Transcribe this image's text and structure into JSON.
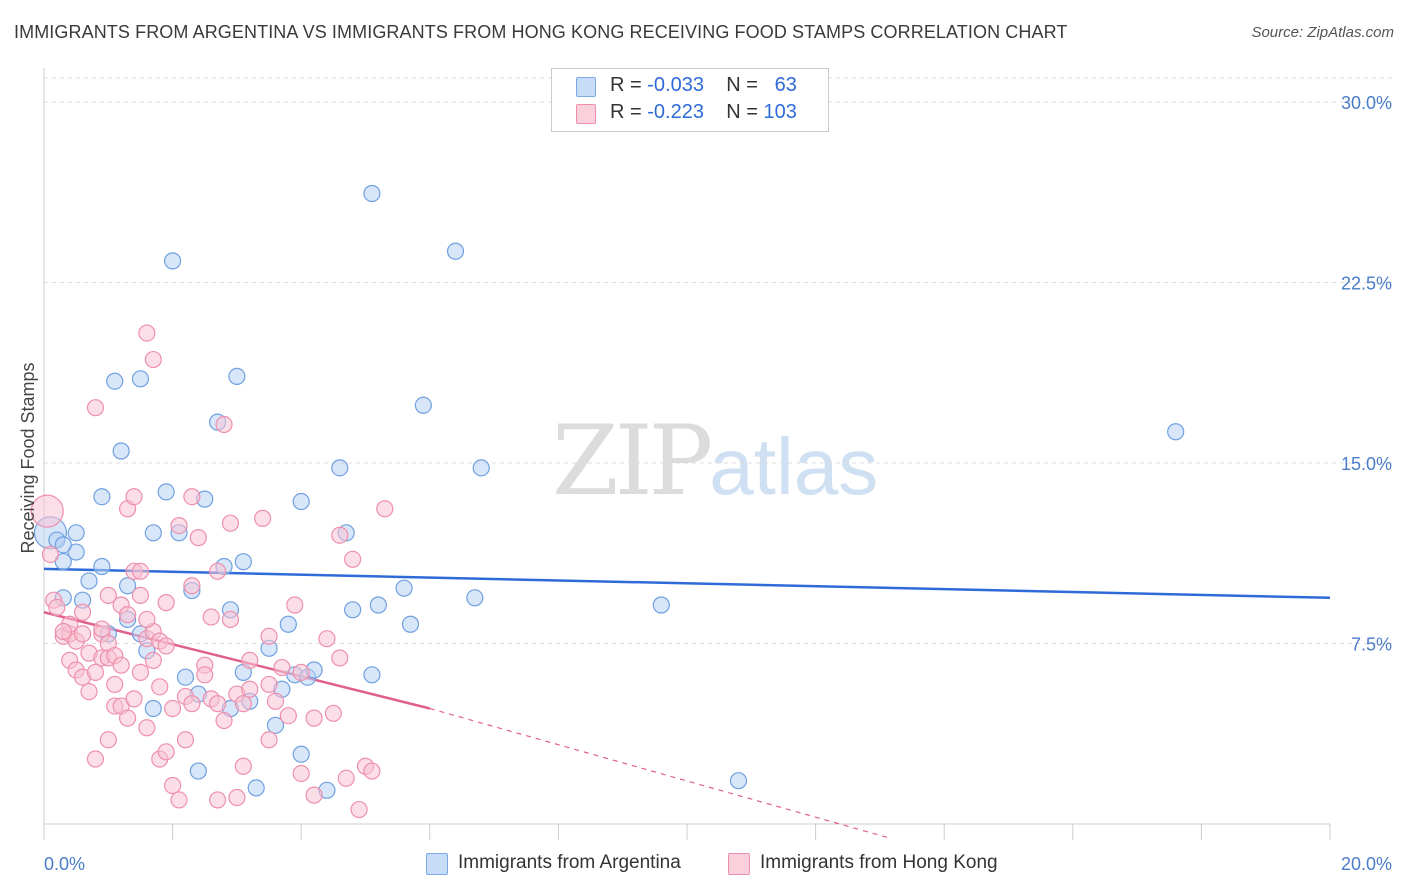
{
  "title": "IMMIGRANTS FROM ARGENTINA VS IMMIGRANTS FROM HONG KONG RECEIVING FOOD STAMPS CORRELATION CHART",
  "source": "Source: ZipAtlas.com",
  "watermark": {
    "zip": "ZIP",
    "atlas": "atlas"
  },
  "legend": {
    "rows": [
      {
        "r_label": "R = ",
        "r_value": "-0.033",
        "n_label": "N = ",
        "n_value": "63",
        "color": "#a9c8f2"
      },
      {
        "r_label": "R = ",
        "r_value": "-0.223",
        "n_label": "N = ",
        "n_value": "103",
        "color": "#f5b6c9"
      }
    ]
  },
  "bottom_legend": [
    {
      "label": "Immigrants from Argentina",
      "color": "#a9c8f2"
    },
    {
      "label": "Immigrants from Hong Kong",
      "color": "#f5b6c9"
    }
  ],
  "chart_data": {
    "type": "scatter",
    "title": "IMMIGRANTS FROM ARGENTINA VS IMMIGRANTS FROM HONG KONG RECEIVING FOOD STAMPS CORRELATION CHART",
    "xlabel": "",
    "ylabel": "Receiving Food Stamps",
    "xlim": [
      0,
      20
    ],
    "ylim": [
      0,
      31
    ],
    "x_tick_labels": [
      "0.0%",
      "20.0%"
    ],
    "y_ticks": [
      7.5,
      15.0,
      22.5,
      30.0
    ],
    "y_tick_labels": [
      "7.5%",
      "15.0%",
      "22.5%",
      "30.0%"
    ],
    "grid": true,
    "series": [
      {
        "name": "Immigrants from Argentina",
        "color": "#6fa0e0",
        "fill": "#b8d2f4",
        "trend": {
          "x": [
            0,
            20
          ],
          "y": [
            10.6,
            9.4
          ],
          "style": "solid",
          "color": "#2f6bd8"
        },
        "points": [
          [
            0.1,
            12.1
          ],
          [
            0.2,
            11.8
          ],
          [
            0.3,
            9.4
          ],
          [
            0.5,
            12.1
          ],
          [
            0.3,
            10.9
          ],
          [
            0.6,
            9.3
          ],
          [
            0.9,
            10.7
          ],
          [
            0.7,
            10.1
          ],
          [
            0.5,
            11.3
          ],
          [
            1.0,
            7.9
          ],
          [
            0.9,
            13.6
          ],
          [
            1.2,
            15.5
          ],
          [
            1.1,
            18.4
          ],
          [
            1.5,
            18.5
          ],
          [
            1.3,
            9.9
          ],
          [
            1.3,
            8.5
          ],
          [
            1.6,
            7.2
          ],
          [
            1.7,
            4.8
          ],
          [
            1.7,
            12.1
          ],
          [
            1.9,
            13.8
          ],
          [
            2.0,
            23.4
          ],
          [
            2.1,
            12.1
          ],
          [
            2.3,
            9.7
          ],
          [
            2.4,
            5.4
          ],
          [
            2.5,
            13.5
          ],
          [
            2.4,
            2.2
          ],
          [
            2.7,
            16.7
          ],
          [
            2.8,
            10.7
          ],
          [
            2.9,
            8.9
          ],
          [
            2.9,
            4.8
          ],
          [
            3.0,
            18.6
          ],
          [
            3.1,
            6.3
          ],
          [
            3.1,
            10.9
          ],
          [
            3.3,
            1.5
          ],
          [
            3.5,
            7.3
          ],
          [
            3.7,
            5.6
          ],
          [
            3.8,
            8.3
          ],
          [
            3.9,
            6.2
          ],
          [
            4.0,
            13.4
          ],
          [
            4.1,
            6.1
          ],
          [
            4.2,
            6.4
          ],
          [
            4.0,
            2.9
          ],
          [
            4.4,
            1.4
          ],
          [
            4.6,
            14.8
          ],
          [
            4.7,
            12.1
          ],
          [
            4.8,
            8.9
          ],
          [
            5.1,
            6.2
          ],
          [
            5.2,
            9.1
          ],
          [
            5.1,
            26.2
          ],
          [
            5.6,
            9.8
          ],
          [
            5.7,
            8.3
          ],
          [
            5.9,
            17.4
          ],
          [
            6.4,
            23.8
          ],
          [
            6.7,
            9.4
          ],
          [
            6.8,
            14.8
          ],
          [
            9.6,
            9.1
          ],
          [
            10.8,
            1.8
          ],
          [
            17.6,
            16.3
          ],
          [
            0.3,
            11.6
          ],
          [
            1.5,
            7.9
          ],
          [
            2.2,
            6.1
          ],
          [
            3.2,
            5.1
          ],
          [
            3.6,
            4.1
          ]
        ]
      },
      {
        "name": "Immigrants from Hong Kong",
        "color": "#ee90ad",
        "fill": "#f8c3d3",
        "trend": {
          "x": [
            0,
            6.0
          ],
          "y": [
            8.8,
            4.8
          ],
          "style": "solid",
          "color": "#e06090",
          "dash_x": [
            6.0,
            20
          ],
          "dash_y": [
            4.8,
            -4.6
          ]
        },
        "points": [
          [
            0.05,
            13.0
          ],
          [
            0.1,
            11.2
          ],
          [
            0.15,
            9.3
          ],
          [
            0.2,
            9.0
          ],
          [
            0.3,
            7.8
          ],
          [
            0.4,
            6.8
          ],
          [
            0.4,
            7.9
          ],
          [
            0.4,
            8.3
          ],
          [
            0.5,
            7.6
          ],
          [
            0.5,
            6.4
          ],
          [
            0.6,
            7.9
          ],
          [
            0.6,
            8.8
          ],
          [
            0.6,
            6.1
          ],
          [
            0.7,
            7.1
          ],
          [
            0.7,
            5.5
          ],
          [
            0.8,
            17.3
          ],
          [
            0.8,
            2.7
          ],
          [
            0.8,
            6.3
          ],
          [
            0.9,
            7.9
          ],
          [
            0.9,
            6.9
          ],
          [
            0.9,
            8.1
          ],
          [
            1.0,
            3.5
          ],
          [
            1.0,
            7.5
          ],
          [
            1.0,
            6.9
          ],
          [
            1.1,
            7.0
          ],
          [
            1.1,
            5.8
          ],
          [
            1.1,
            4.9
          ],
          [
            1.2,
            4.9
          ],
          [
            1.2,
            6.6
          ],
          [
            1.2,
            9.1
          ],
          [
            1.3,
            8.7
          ],
          [
            1.3,
            13.1
          ],
          [
            1.3,
            4.4
          ],
          [
            1.4,
            13.6
          ],
          [
            1.4,
            10.5
          ],
          [
            1.4,
            5.2
          ],
          [
            1.5,
            9.5
          ],
          [
            1.5,
            6.3
          ],
          [
            1.6,
            20.4
          ],
          [
            1.6,
            7.7
          ],
          [
            1.6,
            4.0
          ],
          [
            1.7,
            6.8
          ],
          [
            1.7,
            8.0
          ],
          [
            1.7,
            19.3
          ],
          [
            1.8,
            7.6
          ],
          [
            1.8,
            2.7
          ],
          [
            1.8,
            5.7
          ],
          [
            1.9,
            3.0
          ],
          [
            1.9,
            7.4
          ],
          [
            1.9,
            9.2
          ],
          [
            2.0,
            1.6
          ],
          [
            2.0,
            4.8
          ],
          [
            2.1,
            12.4
          ],
          [
            2.1,
            1.0
          ],
          [
            2.2,
            5.3
          ],
          [
            2.2,
            3.5
          ],
          [
            2.3,
            13.6
          ],
          [
            2.3,
            5.0
          ],
          [
            2.4,
            11.9
          ],
          [
            2.5,
            6.6
          ],
          [
            2.5,
            6.2
          ],
          [
            2.6,
            8.6
          ],
          [
            2.6,
            5.2
          ],
          [
            2.7,
            1.0
          ],
          [
            2.7,
            5.0
          ],
          [
            2.8,
            4.3
          ],
          [
            2.8,
            16.6
          ],
          [
            2.9,
            12.5
          ],
          [
            2.9,
            8.5
          ],
          [
            3.0,
            1.1
          ],
          [
            3.0,
            5.4
          ],
          [
            3.1,
            5.0
          ],
          [
            3.1,
            2.4
          ],
          [
            3.2,
            6.8
          ],
          [
            3.2,
            5.6
          ],
          [
            3.4,
            12.7
          ],
          [
            3.5,
            3.5
          ],
          [
            3.5,
            5.8
          ],
          [
            3.5,
            7.8
          ],
          [
            3.6,
            5.1
          ],
          [
            3.7,
            6.5
          ],
          [
            3.8,
            4.5
          ],
          [
            3.9,
            9.1
          ],
          [
            4.0,
            6.3
          ],
          [
            4.0,
            2.1
          ],
          [
            4.2,
            4.4
          ],
          [
            4.2,
            1.2
          ],
          [
            4.4,
            7.7
          ],
          [
            4.5,
            4.6
          ],
          [
            4.6,
            6.9
          ],
          [
            4.6,
            12.0
          ],
          [
            4.7,
            1.9
          ],
          [
            4.8,
            11.0
          ],
          [
            4.9,
            0.6
          ],
          [
            5.0,
            2.4
          ],
          [
            5.1,
            2.2
          ],
          [
            5.3,
            13.1
          ],
          [
            1.6,
            8.5
          ],
          [
            2.7,
            10.5
          ],
          [
            0.3,
            8.0
          ],
          [
            1.0,
            9.5
          ],
          [
            2.3,
            9.9
          ],
          [
            1.5,
            10.5
          ]
        ]
      }
    ]
  }
}
